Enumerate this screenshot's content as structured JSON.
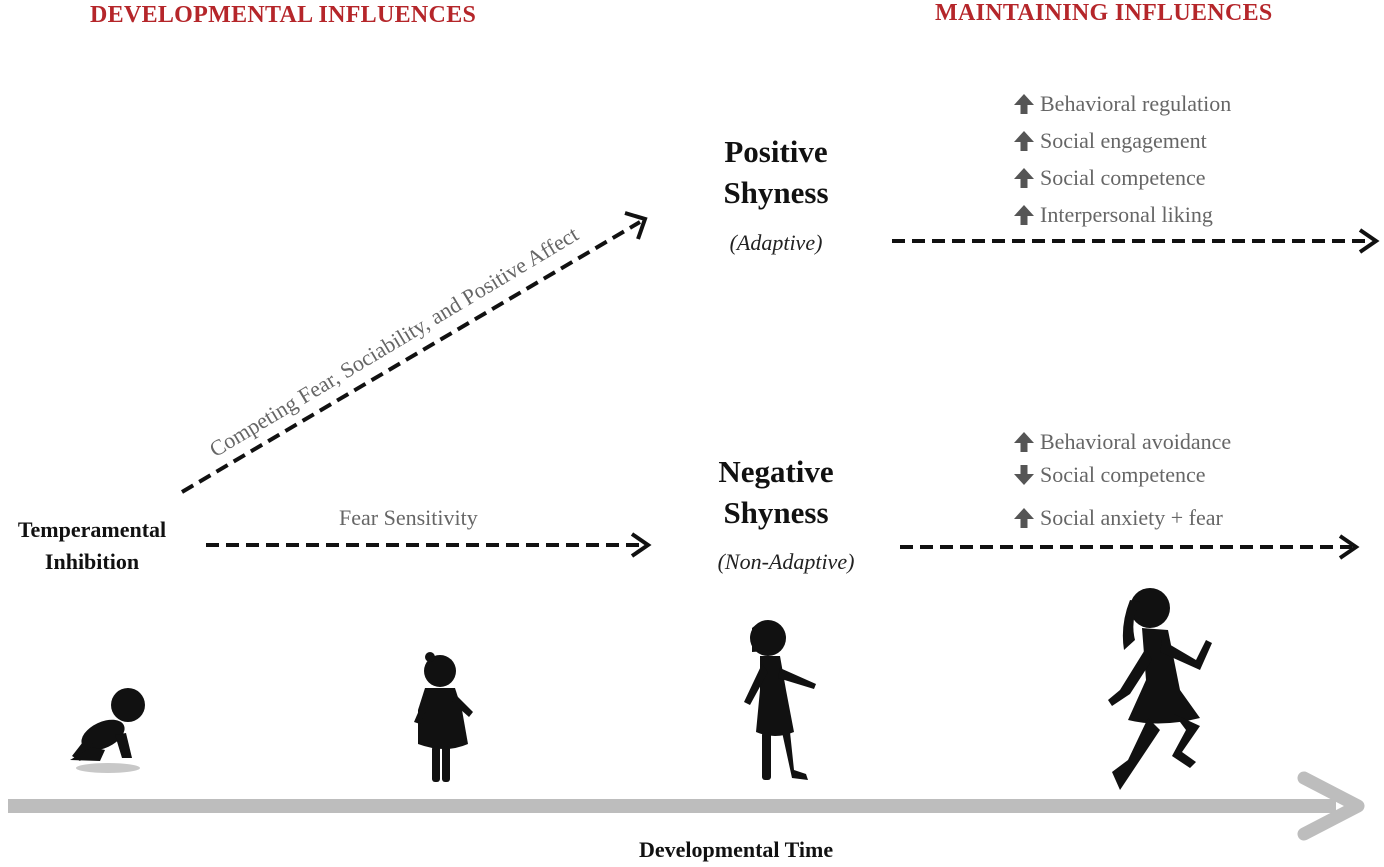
{
  "headers": {
    "developmental": "DEVELOPMENTAL INFLUENCES",
    "maintaining": "MAINTAINING INFLUENCES"
  },
  "source": {
    "line1": "Temperamental",
    "line2": "Inhibition"
  },
  "paths": {
    "upper_label": "Competing Fear, Sociability, and Positive Affect",
    "lower_label": "Fear Sensitivity"
  },
  "positive": {
    "line1": "Positive",
    "line2": "Shyness",
    "sub": "(Adaptive)",
    "influences": [
      {
        "direction": "up",
        "label": "Behavioral regulation"
      },
      {
        "direction": "up",
        "label": "Social engagement"
      },
      {
        "direction": "up",
        "label": "Social competence"
      },
      {
        "direction": "up",
        "label": "Interpersonal liking"
      }
    ]
  },
  "negative": {
    "line1": "Negative",
    "line2": "Shyness",
    "sub": "(Non-Adaptive)",
    "influences": [
      {
        "direction": "up",
        "label": "Behavioral avoidance"
      },
      {
        "direction": "down",
        "label": "Social competence"
      },
      {
        "direction": "up",
        "label": "Social anxiety + fear"
      }
    ]
  },
  "timeline": {
    "label": "Developmental Time"
  },
  "colors": {
    "header": "#b5262a",
    "influence_text": "#666666",
    "influence_arrow": "#555555",
    "timeline": "#bdbdbd",
    "silhouette": "#111111"
  }
}
